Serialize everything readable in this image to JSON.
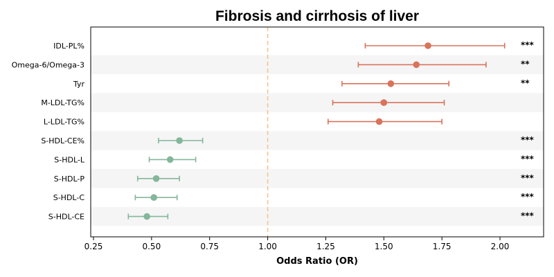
{
  "chart_data": {
    "type": "forest",
    "title": "Fibrosis and cirrhosis of liver",
    "xlabel": "Odds Ratio (OR)",
    "ylabel": "",
    "xlim": [
      0.25,
      2.18
    ],
    "xticks": [
      "0.25",
      "0.50",
      "0.75",
      "1.00",
      "1.25",
      "1.50",
      "1.75",
      "2.00"
    ],
    "reference_line": 1.0,
    "grid": false,
    "rows": [
      {
        "label": "IDL-PL%",
        "or": 1.69,
        "lo": 1.42,
        "hi": 2.02,
        "sig": "***"
      },
      {
        "label": "Omega-6/Omega-3",
        "or": 1.64,
        "lo": 1.39,
        "hi": 1.94,
        "sig": "**"
      },
      {
        "label": "Tyr",
        "or": 1.53,
        "lo": 1.32,
        "hi": 1.78,
        "sig": "**"
      },
      {
        "label": "M-LDL-TG%",
        "or": 1.5,
        "lo": 1.28,
        "hi": 1.76,
        "sig": ""
      },
      {
        "label": "L-LDL-TG%",
        "or": 1.48,
        "lo": 1.26,
        "hi": 1.75,
        "sig": ""
      },
      {
        "label": "S-HDL-CE%",
        "or": 0.62,
        "lo": 0.53,
        "hi": 0.72,
        "sig": "***"
      },
      {
        "label": "S-HDL-L",
        "or": 0.58,
        "lo": 0.49,
        "hi": 0.69,
        "sig": "***"
      },
      {
        "label": "S-HDL-P",
        "or": 0.52,
        "lo": 0.44,
        "hi": 0.62,
        "sig": "***"
      },
      {
        "label": "S-HDL-C",
        "or": 0.51,
        "lo": 0.43,
        "hi": 0.61,
        "sig": "***"
      },
      {
        "label": "S-HDL-CE",
        "or": 0.48,
        "lo": 0.4,
        "hi": 0.57,
        "sig": "***"
      }
    ],
    "colors": {
      "risk": "#d9735b",
      "protective": "#84b69a",
      "reference": "#f0c78a",
      "band": "#f5f5f5",
      "axis": "#000000"
    }
  }
}
